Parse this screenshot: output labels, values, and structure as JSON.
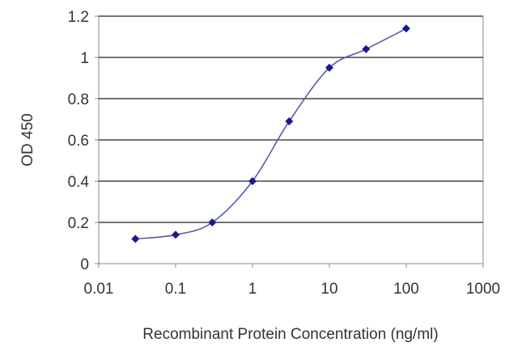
{
  "chart_data": {
    "type": "line",
    "title": "",
    "xlabel": "Recombinant Protein Concentration (ng/ml)",
    "ylabel": "OD 450",
    "x_scale": "log",
    "xlim": [
      0.01,
      1000
    ],
    "ylim": [
      0,
      1.2
    ],
    "grid": true,
    "legend": "none",
    "x_tick_labels": [
      "0.01",
      "0.1",
      "1",
      "10",
      "100",
      "1000"
    ],
    "x_tick_values": [
      0.01,
      0.1,
      1,
      10,
      100,
      1000
    ],
    "y_tick_labels": [
      "0",
      "0.2",
      "0.4",
      "0.6",
      "0.8",
      "1",
      "1.2"
    ],
    "y_tick_values": [
      0,
      0.2,
      0.4,
      0.6,
      0.8,
      1.0,
      1.2
    ],
    "series": [
      {
        "x": [
          0.03,
          0.1,
          0.3,
          1,
          3,
          10,
          30,
          100
        ],
        "y": [
          0.12,
          0.14,
          0.2,
          0.4,
          0.69,
          0.95,
          1.04,
          1.14
        ],
        "color": "#1a1a8c"
      }
    ],
    "colors": {
      "line": "#5a5aa8",
      "marker": "#1a1a8c",
      "grid": "#222222",
      "frame": "#888888"
    }
  }
}
